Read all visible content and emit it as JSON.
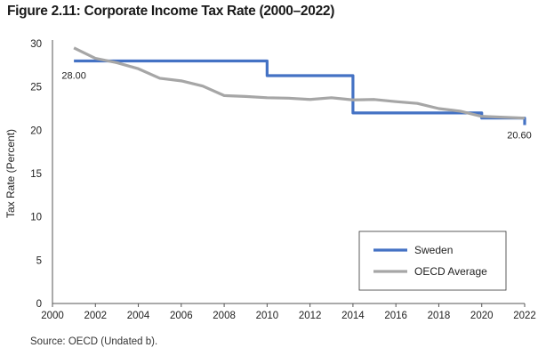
{
  "title": "Figure 2.11: Corporate Income Tax Rate (2000–2022)",
  "source": "Source: OECD (Undated b).",
  "chart_data": {
    "type": "line",
    "xlabel": "",
    "ylabel": "Tax Rate (Percent)",
    "xlim": [
      2000,
      2022
    ],
    "ylim": [
      0,
      30
    ],
    "xticks": [
      2000,
      2002,
      2004,
      2006,
      2008,
      2010,
      2012,
      2014,
      2016,
      2018,
      2020,
      2022
    ],
    "yticks": [
      0,
      5,
      10,
      15,
      20,
      25,
      30
    ],
    "grid": false,
    "legend": "bottom-right",
    "series": [
      {
        "name": "Sweden",
        "color": "#4472c4",
        "step": true,
        "x": [
          2001,
          2002,
          2003,
          2004,
          2005,
          2006,
          2007,
          2008,
          2009,
          2010,
          2011,
          2012,
          2013,
          2014,
          2015,
          2016,
          2017,
          2018,
          2019,
          2020,
          2021,
          2022
        ],
        "y": [
          28,
          28,
          28,
          28,
          28,
          28,
          28,
          28,
          28,
          26.3,
          26.3,
          26.3,
          26.3,
          22,
          22,
          22,
          22,
          22,
          22,
          21.4,
          21.4,
          20.6
        ]
      },
      {
        "name": "OECD Average",
        "color": "#a6a6a6",
        "step": false,
        "x": [
          2001,
          2002,
          2003,
          2004,
          2005,
          2006,
          2007,
          2008,
          2009,
          2010,
          2011,
          2012,
          2013,
          2014,
          2015,
          2016,
          2017,
          2018,
          2019,
          2020,
          2021,
          2022
        ],
        "y": [
          29.5,
          28.3,
          27.8,
          27.1,
          26.0,
          25.7,
          25.1,
          24.0,
          23.9,
          23.75,
          23.7,
          23.55,
          23.75,
          23.5,
          23.55,
          23.3,
          23.1,
          22.5,
          22.2,
          21.6,
          21.5,
          21.4
        ]
      }
    ],
    "annotations": [
      {
        "text": "28.00",
        "x": 2001,
        "y": 28
      },
      {
        "text": "20.60",
        "x": 2022,
        "y": 20.6
      }
    ]
  }
}
